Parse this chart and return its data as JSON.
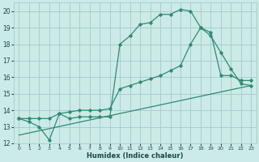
{
  "line1_x": [
    0,
    1,
    2,
    3,
    4,
    5,
    6,
    7,
    8,
    9,
    10,
    11,
    12,
    13,
    14,
    15,
    16,
    17,
    18,
    19,
    20,
    21,
    22,
    23
  ],
  "line1_y": [
    13.5,
    13.3,
    13.0,
    12.2,
    13.8,
    13.5,
    13.6,
    13.6,
    13.6,
    13.6,
    18.0,
    18.5,
    19.2,
    19.3,
    19.8,
    19.8,
    20.1,
    20.0,
    19.0,
    18.7,
    16.1,
    16.1,
    15.8,
    15.8
  ],
  "line2_x": [
    0,
    1,
    2,
    3,
    4,
    5,
    6,
    7,
    8,
    9,
    10,
    11,
    12,
    13,
    14,
    15,
    16,
    17,
    18,
    19,
    20,
    21,
    22,
    23
  ],
  "line2_y": [
    13.5,
    13.5,
    13.5,
    13.5,
    13.8,
    13.9,
    14.0,
    14.0,
    14.0,
    14.1,
    15.3,
    15.5,
    15.7,
    15.9,
    16.1,
    16.4,
    16.7,
    18.0,
    19.0,
    18.5,
    17.5,
    16.5,
    15.6,
    15.5
  ],
  "line3_x": [
    0,
    23
  ],
  "line3_y": [
    12.5,
    15.5
  ],
  "color": "#2e8b74",
  "bg_color": "#cceae7",
  "grid_color": "#a0cdc9",
  "xlabel": "Humidex (Indice chaleur)",
  "xlim": [
    -0.5,
    23.5
  ],
  "ylim": [
    12,
    20.5
  ],
  "yticks": [
    12,
    13,
    14,
    15,
    16,
    17,
    18,
    19,
    20
  ],
  "xticks": [
    0,
    1,
    2,
    3,
    4,
    5,
    6,
    7,
    8,
    9,
    10,
    11,
    12,
    13,
    14,
    15,
    16,
    17,
    18,
    19,
    20,
    21,
    22,
    23
  ]
}
